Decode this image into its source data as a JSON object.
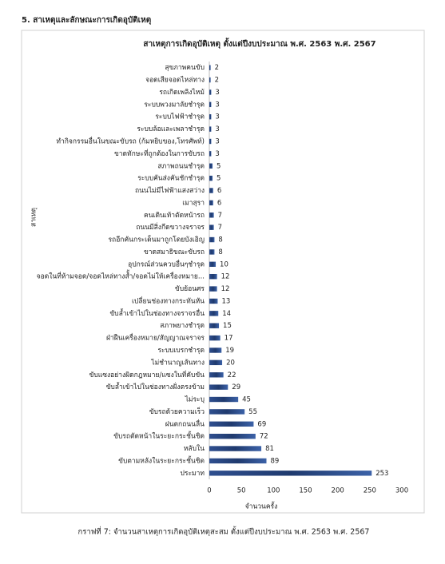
{
  "heading": "5. สาเหตุและลักษณะการเกิดอุบัติเหตุ",
  "caption": "กราฟที่ 7: จำนวนสาเหตุการเกิดอุบัติเหตุสะสม ตั้งแต่ปีงบประมาณ พ.ศ. 2563   พ.ศ. 2567",
  "chart_data": {
    "type": "bar",
    "orientation": "horizontal",
    "title": "สาเหตุการเกิดอุบัติเหตุ ตั้งแต่ปีงบประมาณ พ.ศ. 2563   พ.ศ. 2567",
    "x_label": "จำนวนครั้ง",
    "y_label": "สาเหตุ",
    "categories": [
      "สุขภาพคนขับ",
      "จอดเสียจอดไหล่ทาง",
      "รถเกิดเพลิงไหม้",
      "ระบบพวงมาลัยชำรุด",
      "ระบบไฟฟ้าชำรุด",
      "ระบบล้อและเพลาชำรุด",
      "ทำกิจกรรมอื่นในขณะขับรถ (ก้มหยิบของ,โทรศัพท์)",
      "ขาดทักษะที่ถูกต้องในการขับรถ",
      "สภาพถนนชำรุด",
      "ระบบคันส่งคันชักชำรุด",
      "ถนนไม่มีไฟฟ้าแสงสว่าง",
      "เมาสุรา",
      "คนเดินเท้าตัดหน้ารถ",
      "ถนนมีสิ่งกีดขวางจราจร",
      "รถอีกคันกระเด็นมาถูกโดยบังเอิญ",
      "ขาดสมาธิขณะขับรถ",
      "อุปกรณ์ส่วนควบอื่นๆชำรุด",
      "จอดในที่ห้ามจอด/จอดไหล่ทางสั้ำ/จอดไม่ให้เครื่องหมาย...",
      "ขับย้อนศร",
      "เปลี่ยนช่องทางกระทันหัน",
      "ขับล้ำเข้าไปในช่องทางจราจรอื่น",
      "สภาพยางชำรุด",
      "ฝ่าฝืนเครื่องหมาย/สัญญาณจราจร",
      "ระบบเบรกชำรุด",
      "ไม่ชำนาญเส้นทาง",
      "ขับแซงอย่างผิดกฎหมาย/แซงในที่คับขัน",
      "ขับล้ำเข้าไปในช่องทางฝั่งตรงข้าม",
      "ไม่ระบุ",
      "ขับรถด้วยความเร็ว",
      "ฝนตกถนนลื่น",
      "ขับรถตัดหน้าในระยะกระชั้นชิด",
      "หลับใน",
      "ขับตามหลังในระยะกระชั้นชิด",
      "ประมาท"
    ],
    "values": [
      2,
      2,
      3,
      3,
      3,
      3,
      3,
      3,
      5,
      5,
      6,
      6,
      7,
      7,
      8,
      8,
      10,
      12,
      12,
      13,
      14,
      15,
      17,
      19,
      20,
      22,
      29,
      45,
      55,
      69,
      72,
      81,
      89,
      253
    ],
    "color": "#2f4f8f",
    "xlim": [
      0,
      300
    ],
    "xticks": [
      0,
      50,
      100,
      150,
      200,
      250,
      300
    ],
    "grid": false
  }
}
